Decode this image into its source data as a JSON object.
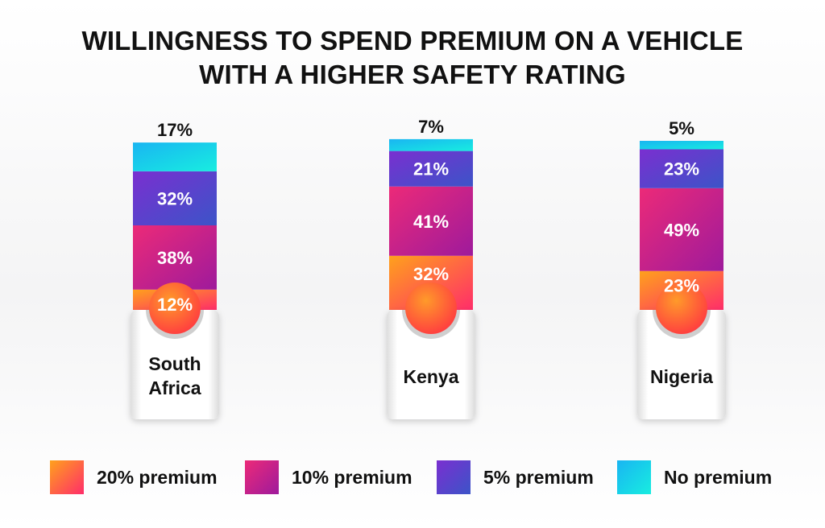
{
  "chart_data": {
    "type": "stacked-bar",
    "title_lines": [
      "WILLINGNESS TO SPEND PREMIUM ON A VEHICLE",
      "WITH A HIGHER SAFETY RATING"
    ],
    "categories": [
      [
        "South",
        "Africa"
      ],
      [
        "Kenya"
      ],
      [
        "Nigeria"
      ]
    ],
    "series": [
      {
        "name": "20% premium",
        "values": [
          12,
          32,
          23
        ]
      },
      {
        "name": "10% premium",
        "values": [
          38,
          41,
          49
        ]
      },
      {
        "name": "5% premium",
        "values": [
          32,
          21,
          23
        ]
      },
      {
        "name": "No premium",
        "values": [
          17,
          7,
          5
        ]
      }
    ],
    "value_labels": [
      [
        "12%",
        "32%",
        "23%"
      ],
      [
        "38%",
        "41%",
        "49%"
      ],
      [
        "32%",
        "21%",
        "23%"
      ],
      [
        "17%",
        "7%",
        "5%"
      ]
    ],
    "ylim": [
      0,
      100
    ],
    "legend_position": "bottom"
  },
  "colors": {
    "premium_20": [
      "#ffa11c",
      "#ff2d6a"
    ],
    "premium_10": [
      "#ec2a78",
      "#9e1a9c"
    ],
    "premium_5": [
      "#7a2fd0",
      "#3c54c8"
    ],
    "no_premium": [
      "#22c7f0",
      "#18e8e0"
    ],
    "text_dark": "#111111",
    "text_light": "#ffffff"
  }
}
